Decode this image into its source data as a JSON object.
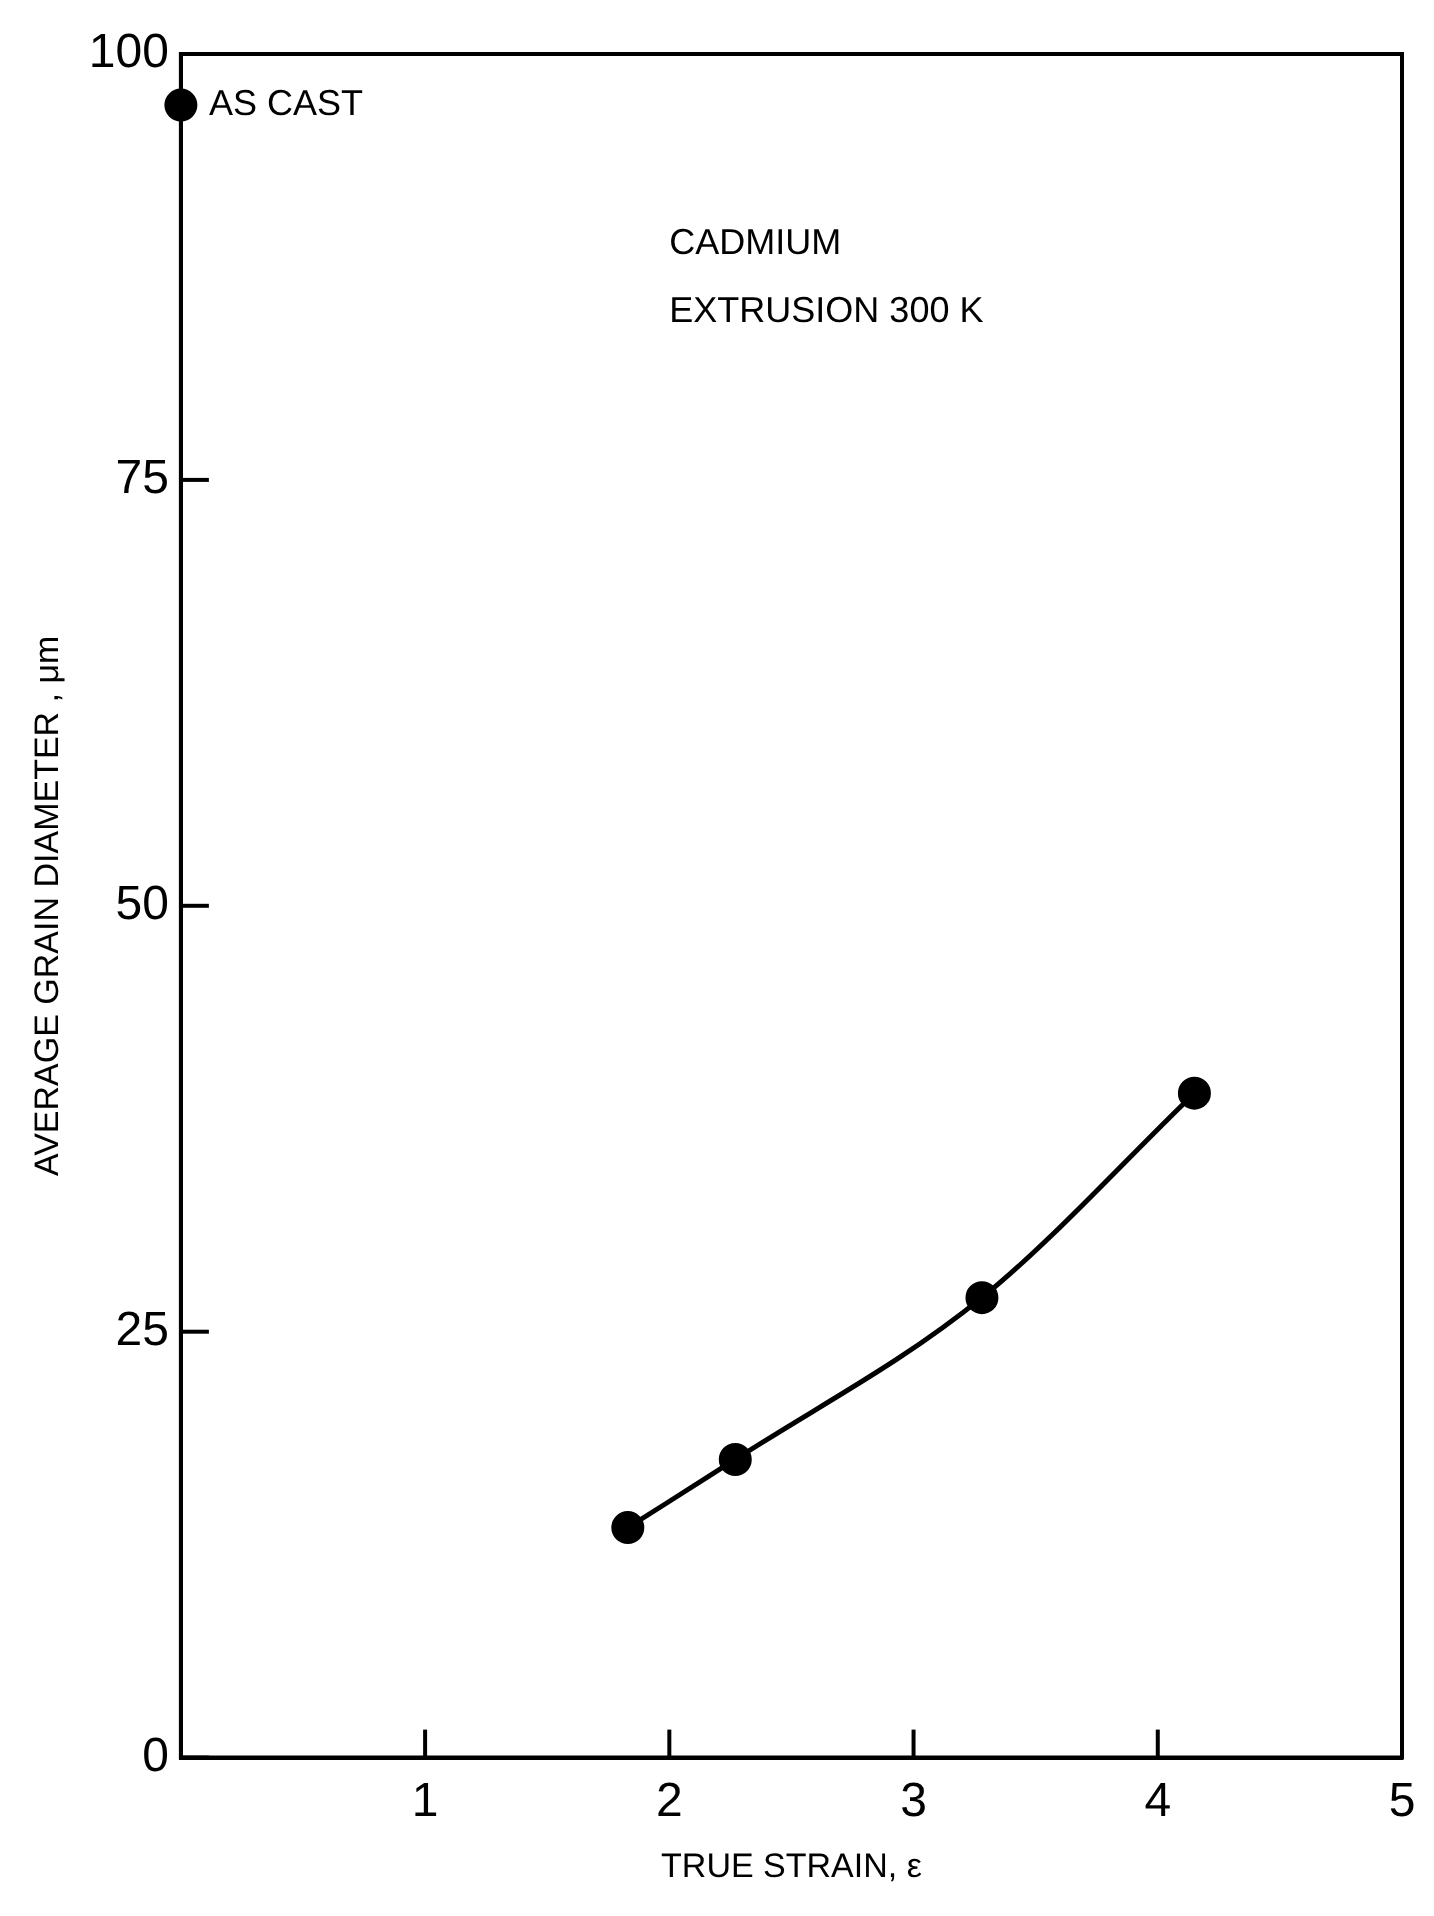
{
  "chart_data": {
    "type": "line",
    "xlabel": "TRUE STRAIN, ε",
    "ylabel": "AVERAGE GRAIN DIAMETER , μm",
    "xlim": [
      0,
      5
    ],
    "xticks": [
      1,
      2,
      3,
      4,
      5
    ],
    "ylim": [
      0,
      100
    ],
    "yticks": [
      0,
      25,
      50,
      75,
      100
    ],
    "grid": false,
    "legend": false,
    "marker": "circle",
    "line_style": "solid",
    "series": [
      {
        "type": "line",
        "x": [
          1.83,
          2.27,
          3.28,
          4.15
        ],
        "values": [
          13.5,
          17.5,
          27,
          39
        ],
        "color": "#000000"
      },
      {
        "type": "scatter",
        "x": [
          0
        ],
        "values": [
          97
        ],
        "color": "#000000"
      }
    ],
    "annotations": [
      {
        "text": "AS CAST",
        "x": 0,
        "y": 97
      },
      "CADMIUM",
      "EXTRUSION 300 K"
    ]
  }
}
